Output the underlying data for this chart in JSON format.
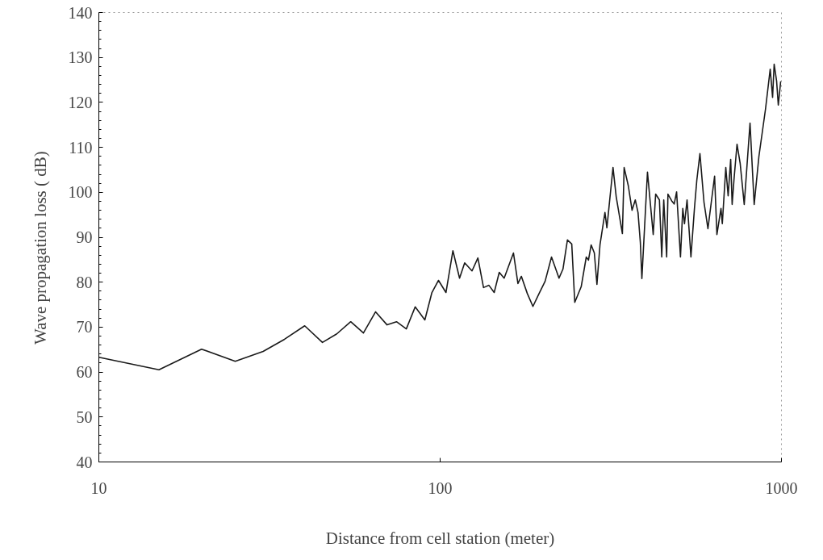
{
  "chart_data": {
    "type": "line",
    "xlabel": "Distance from cell station (meter)",
    "ylabel": "Wave propagation loss      ( dB)",
    "log": "x",
    "xlim": [
      10,
      1000
    ],
    "xticks": [
      10,
      100,
      1000
    ],
    "ylim": [
      40,
      140
    ],
    "yticks": [
      40,
      50,
      60,
      70,
      80,
      90,
      100,
      110,
      120,
      130,
      140
    ],
    "grid": false,
    "marker": "none",
    "line_style": "solid",
    "series": [
      {
        "color": "#1a1a1a",
        "x": [
          10,
          15,
          20,
          25.1,
          30.3,
          35,
          40.1,
          45.2,
          49.8,
          54.7,
          59.6,
          64.7,
          69.9,
          74.5,
          79.6,
          84.5,
          90.2,
          94.6,
          98.9,
          104,
          109,
          114,
          118,
          124,
          129,
          134,
          139,
          144,
          149,
          154,
          164,
          169,
          173,
          180,
          187,
          195,
          203,
          212,
          223,
          229,
          236,
          243,
          248,
          259,
          268,
          272,
          277,
          283,
          288,
          294,
          304,
          308,
          321,
          328,
          342,
          346,
          356,
          365,
          373,
          380,
          386,
          390,
          405,
          421,
          428,
          439,
          446,
          452,
          461,
          465,
          477,
          485,
          493,
          506,
          514,
          520,
          529,
          543,
          556,
          565,
          577,
          593,
          609,
          637,
          647,
          665,
          671,
          687,
          698,
          710,
          717,
          726,
          741,
          757,
          778,
          809,
          832,
          859,
          898,
          927,
          942,
          952,
          968,
          979,
          995
        ],
        "values": [
          63.3,
          60.5,
          65.1,
          62.4,
          64.6,
          67.3,
          70.3,
          66.6,
          68.5,
          71.2,
          68.7,
          73.4,
          70.5,
          71.2,
          69.6,
          74.5,
          71.6,
          77.7,
          80.4,
          77.7,
          87.0,
          80.9,
          84.3,
          82.5,
          85.4,
          78.8,
          79.3,
          77.7,
          82.2,
          80.9,
          86.5,
          79.7,
          81.3,
          77.5,
          74.6,
          77.5,
          80.2,
          85.6,
          80.9,
          82.9,
          89.4,
          88.5,
          75.5,
          79.0,
          85.6,
          84.9,
          88.3,
          86.5,
          79.5,
          88.3,
          95.5,
          92.1,
          105.5,
          99.0,
          90.8,
          105.5,
          101.4,
          96.0,
          98.3,
          95.5,
          88.8,
          80.8,
          104.5,
          90.6,
          99.6,
          98.3,
          85.6,
          98.3,
          85.6,
          99.6,
          98.1,
          97.4,
          100.1,
          85.6,
          96.4,
          93.0,
          98.3,
          85.6,
          96.4,
          102.7,
          108.6,
          97.8,
          91.9,
          103.6,
          90.6,
          96.4,
          93.0,
          105.5,
          99.2,
          107.3,
          97.3,
          102.8,
          110.7,
          106.4,
          97.3,
          115.4,
          97.3,
          108.0,
          118.5,
          127.4,
          121.1,
          128.5,
          124.7,
          119.4,
          124.7
        ]
      }
    ]
  }
}
